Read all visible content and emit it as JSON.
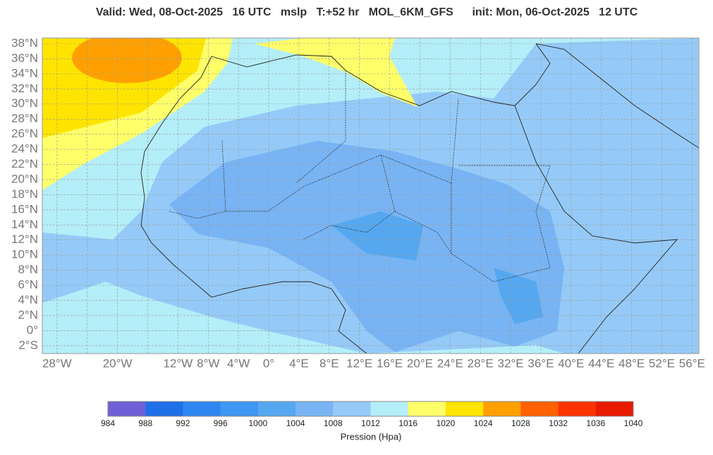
{
  "header": {
    "title": "Valid: Wed, 08-Oct-2025   16 UTC   mslp   T:+52 hr   MOL_6KM_GFS      init: Mon, 06-Oct-2025   12 UTC"
  },
  "map": {
    "lat_ticks": [
      {
        "value": 38,
        "label": "38°N"
      },
      {
        "value": 36,
        "label": "36°N"
      },
      {
        "value": 34,
        "label": "34°N"
      },
      {
        "value": 32,
        "label": "32°N"
      },
      {
        "value": 30,
        "label": "30°N"
      },
      {
        "value": 28,
        "label": "28°N"
      },
      {
        "value": 26,
        "label": "26°N"
      },
      {
        "value": 24,
        "label": "24°N"
      },
      {
        "value": 22,
        "label": "22°N"
      },
      {
        "value": 20,
        "label": "20°N"
      },
      {
        "value": 18,
        "label": "18°N"
      },
      {
        "value": 16,
        "label": "16°N"
      },
      {
        "value": 14,
        "label": "14°N"
      },
      {
        "value": 12,
        "label": "12°N"
      },
      {
        "value": 10,
        "label": "10°N"
      },
      {
        "value": 8,
        "label": "8°N"
      },
      {
        "value": 6,
        "label": "6°N"
      },
      {
        "value": 4,
        "label": "4°N"
      },
      {
        "value": 2,
        "label": "2°N"
      },
      {
        "value": 0,
        "label": "0°"
      },
      {
        "value": -2,
        "label": "2°S"
      }
    ],
    "lon_ticks": [
      {
        "value": -28,
        "label": "28°W"
      },
      {
        "value": -20,
        "label": "20°W"
      },
      {
        "value": -12,
        "label": "12°W"
      },
      {
        "value": -8,
        "label": "8°W"
      },
      {
        "value": -4,
        "label": "4°W"
      },
      {
        "value": 0,
        "label": "0°"
      },
      {
        "value": 4,
        "label": "4°E"
      },
      {
        "value": 8,
        "label": "8°E"
      },
      {
        "value": 12,
        "label": "12°E"
      },
      {
        "value": 16,
        "label": "16°E"
      },
      {
        "value": 20,
        "label": "20°E"
      },
      {
        "value": 24,
        "label": "24°E"
      },
      {
        "value": 28,
        "label": "28°E"
      },
      {
        "value": 32,
        "label": "32°E"
      },
      {
        "value": 36,
        "label": "36°E"
      },
      {
        "value": 40,
        "label": "40°E"
      },
      {
        "value": 44,
        "label": "44°E"
      },
      {
        "value": 48,
        "label": "48°E"
      },
      {
        "value": 52,
        "label": "52°E"
      },
      {
        "value": 56,
        "label": "56°E"
      }
    ],
    "colorbar": {
      "ticks": [
        984,
        988,
        992,
        996,
        1000,
        1004,
        1008,
        1012,
        1016,
        1020,
        1024,
        1028,
        1032,
        1036,
        1040
      ],
      "colors": [
        "#7060d8",
        "#1f6fe8",
        "#2f86f0",
        "#3d97f3",
        "#55a8f0",
        "#78b4f4",
        "#95caf8",
        "#b4eef8",
        "#ffff6a",
        "#ffe400",
        "#ffa000",
        "#ff6000",
        "#ff3300",
        "#e81a00"
      ],
      "label": "Pression (Hpa)"
    }
  }
}
